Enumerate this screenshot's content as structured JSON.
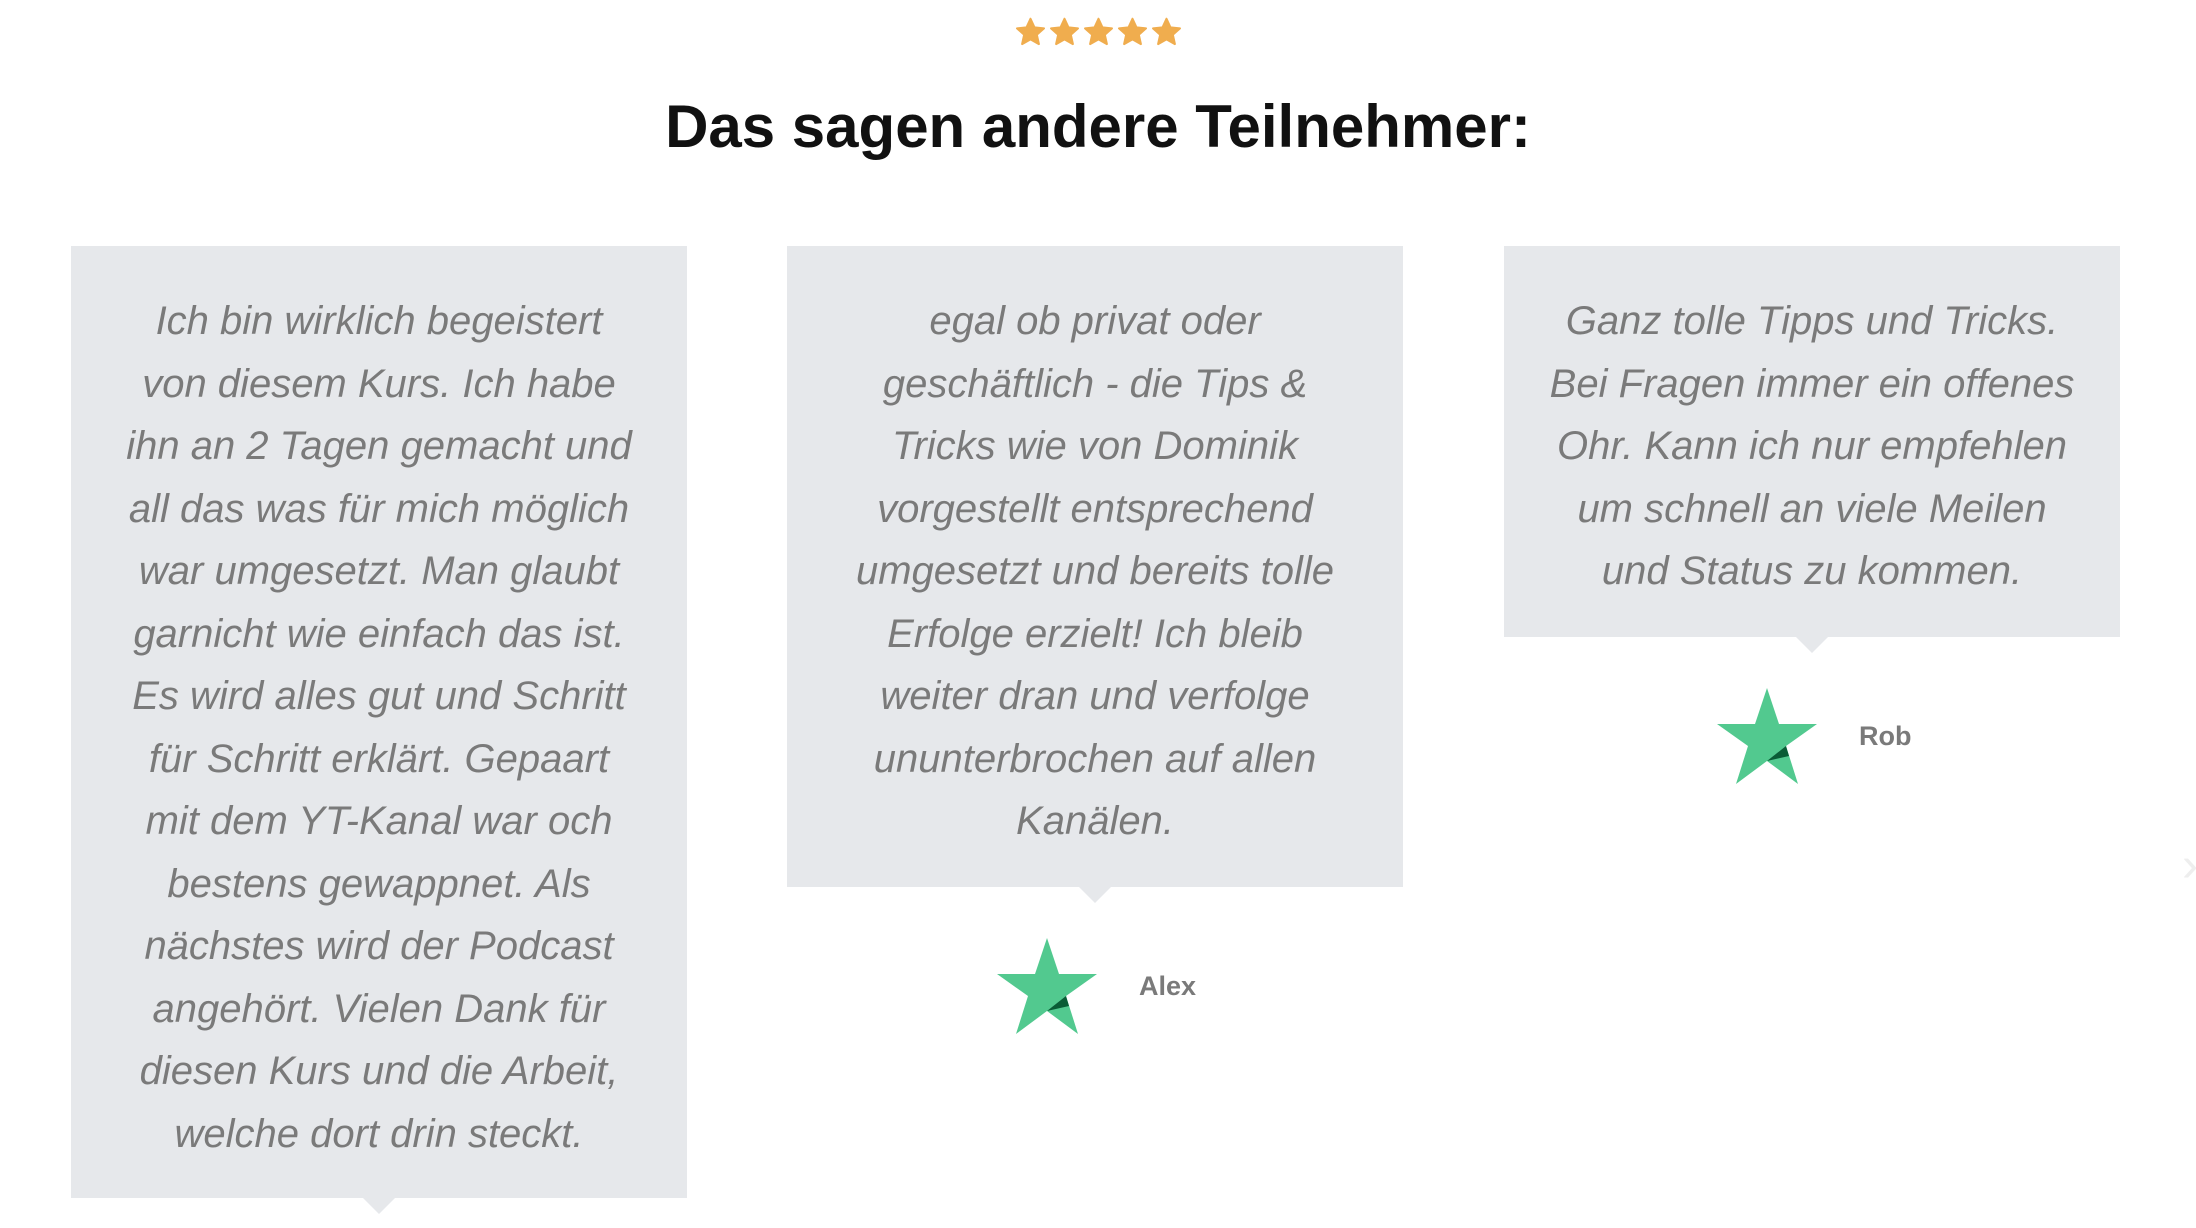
{
  "rating": {
    "stars": 5,
    "max": 5,
    "color": "#f0ad4e"
  },
  "heading": "Das sagen andere Teilnehmer:",
  "testimonials": [
    {
      "lines": [
        "Ich bin wirklich begeistert",
        "von diesem Kurs. Ich habe",
        "ihn an 2 Tagen gemacht und",
        "all das was für mich möglich",
        "war umgesetzt. Man glaubt",
        "garnicht wie einfach das ist.",
        "Es wird alles gut und Schritt",
        "für Schritt erklärt. Gepaart",
        "mit dem YT-Kanal war och",
        "bestens gewappnet. Als",
        "nächstes wird der Podcast",
        "angehört. Vielen Dank für",
        "diesen Kurs und die Arbeit,",
        "welche dort drin steckt."
      ],
      "author": ""
    },
    {
      "lines": [
        "egal ob privat oder",
        "geschäftlich - die Tips &",
        "Tricks wie von Dominik",
        "vorgestellt entsprechend",
        "umgesetzt und bereits tolle",
        "Erfolge erzielt! Ich bleib",
        "weiter dran und verfolge",
        "ununterbrochen auf allen",
        "Kanälen."
      ],
      "author": "Alex"
    },
    {
      "lines": [
        "Ganz tolle Tipps und Tricks.",
        "Bei Fragen immer ein offenes",
        "Ohr. Kann ich nur empfehlen",
        "um schnell an viele Meilen",
        "und Status zu kommen."
      ],
      "author": "Rob"
    }
  ],
  "trust_star_color": "#52c98f",
  "nav": {
    "prev": "‹",
    "next": "›"
  }
}
